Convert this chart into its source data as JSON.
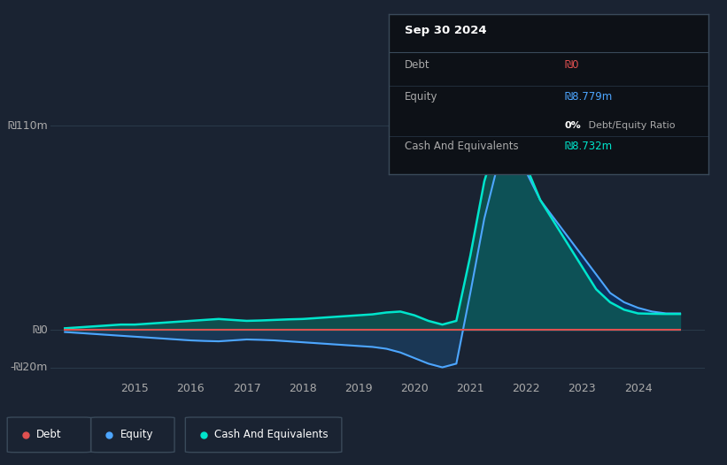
{
  "bg_color": "#1a2332",
  "plot_bg_color": "#1a2332",
  "grid_color": "#2a3a4a",
  "title_box": {
    "date": "Sep 30 2024",
    "debt_label": "Debt",
    "debt_value": "₪0",
    "debt_color": "#e05050",
    "equity_label": "Equity",
    "equity_value": "₪8.779m",
    "equity_color": "#4da6ff",
    "ratio_value": "0% Debt/Equity Ratio",
    "cash_label": "Cash And Equivalents",
    "cash_value": "₪8.732m",
    "cash_color": "#00e5cc"
  },
  "y_labels": [
    "₪110m",
    "₪0",
    "-₪20m"
  ],
  "y_values": [
    110,
    0,
    -20
  ],
  "x_ticks": [
    2015,
    2016,
    2017,
    2018,
    2019,
    2020,
    2021,
    2022,
    2023,
    2024
  ],
  "ylim": [
    -25,
    120
  ],
  "xlim": [
    2013.5,
    2025.2
  ],
  "debt_color": "#e05050",
  "equity_color": "#4da6ff",
  "cash_color": "#00e5cc",
  "legend_items": [
    {
      "label": "Debt",
      "color": "#e05050"
    },
    {
      "label": "Equity",
      "color": "#4da6ff"
    },
    {
      "label": "Cash And Equivalents",
      "color": "#00e5cc"
    }
  ],
  "debt_x": [
    2013.75,
    2014,
    2014.25,
    2014.5,
    2014.75,
    2015,
    2015.25,
    2015.5,
    2015.75,
    2016,
    2016.25,
    2016.5,
    2016.75,
    2017,
    2017.25,
    2017.5,
    2017.75,
    2018,
    2018.25,
    2018.5,
    2018.75,
    2019,
    2019.25,
    2019.5,
    2019.75,
    2020,
    2020.25,
    2020.5,
    2020.75,
    2021,
    2021.25,
    2021.5,
    2021.75,
    2022,
    2022.25,
    2022.5,
    2022.75,
    2023,
    2023.25,
    2023.5,
    2023.75,
    2024,
    2024.25,
    2024.5,
    2024.75
  ],
  "debt_y": [
    0,
    0,
    0,
    0,
    0,
    0,
    0,
    0,
    0,
    0,
    0,
    0,
    0,
    0,
    0,
    0,
    0,
    0,
    0,
    0,
    0,
    0,
    0,
    0,
    0,
    0,
    0,
    0,
    0,
    0,
    0,
    0,
    0,
    0,
    0,
    0,
    0,
    0,
    0,
    0,
    0,
    0,
    0,
    0,
    0
  ],
  "equity_x": [
    2013.75,
    2014,
    2014.25,
    2014.5,
    2014.75,
    2015,
    2015.25,
    2015.5,
    2015.75,
    2016,
    2016.25,
    2016.5,
    2016.75,
    2017,
    2017.25,
    2017.5,
    2017.75,
    2018,
    2018.25,
    2018.5,
    2018.75,
    2019,
    2019.25,
    2019.5,
    2019.75,
    2020,
    2020.25,
    2020.5,
    2020.75,
    2021,
    2021.25,
    2021.5,
    2021.75,
    2022,
    2022.25,
    2022.5,
    2022.75,
    2023,
    2023.25,
    2023.5,
    2023.75,
    2024,
    2024.25,
    2024.5,
    2024.75
  ],
  "equity_y": [
    -1,
    -1.5,
    -2,
    -2.5,
    -3,
    -3.5,
    -4,
    -4.5,
    -5,
    -5.5,
    -5.8,
    -6,
    -5.5,
    -5,
    -5.2,
    -5.5,
    -6,
    -6.5,
    -7,
    -7.5,
    -8,
    -8.5,
    -9,
    -10,
    -12,
    -15,
    -18,
    -20,
    -18,
    20,
    60,
    90,
    95,
    85,
    70,
    60,
    50,
    40,
    30,
    20,
    15,
    12,
    10,
    9,
    9
  ],
  "cash_x": [
    2013.75,
    2014,
    2014.25,
    2014.5,
    2014.75,
    2015,
    2015.25,
    2015.5,
    2015.75,
    2016,
    2016.25,
    2016.5,
    2016.75,
    2017,
    2017.25,
    2017.5,
    2017.75,
    2018,
    2018.25,
    2018.5,
    2018.75,
    2019,
    2019.25,
    2019.5,
    2019.75,
    2020,
    2020.25,
    2020.5,
    2020.75,
    2021,
    2021.25,
    2021.5,
    2021.75,
    2022,
    2022.25,
    2022.5,
    2022.75,
    2023,
    2023.25,
    2023.5,
    2023.75,
    2024,
    2024.25,
    2024.5,
    2024.75
  ],
  "cash_y": [
    1,
    1.5,
    2,
    2.5,
    3,
    3,
    3.5,
    4,
    4.5,
    5,
    5.5,
    6,
    5.5,
    5,
    5.2,
    5.5,
    5.8,
    6,
    6.5,
    7,
    7.5,
    8,
    8.5,
    9.5,
    10,
    8,
    5,
    3,
    5,
    40,
    80,
    105,
    97,
    88,
    70,
    58,
    46,
    34,
    22,
    15,
    11,
    9,
    8.8,
    8.7,
    8.7
  ]
}
